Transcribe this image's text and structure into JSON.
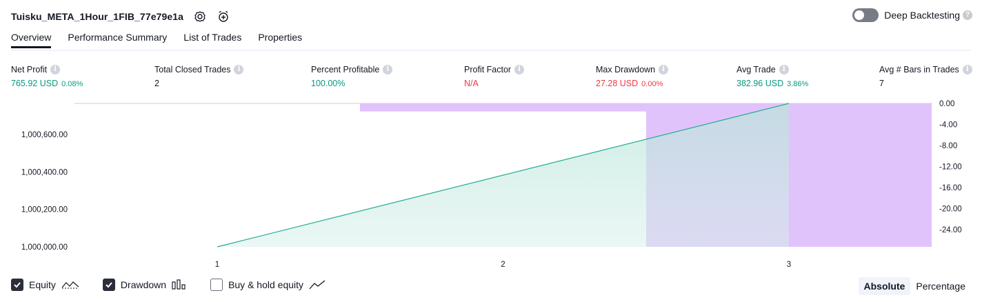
{
  "header": {
    "title": "Tuisku_META_1Hour_1FIB_77e79e1a"
  },
  "deep_backtesting": {
    "label": "Deep Backtesting",
    "help": "?"
  },
  "tabs": [
    {
      "label": "Overview"
    },
    {
      "label": "Performance Summary"
    },
    {
      "label": "List of Trades"
    },
    {
      "label": "Properties"
    }
  ],
  "metrics": {
    "info_glyph": "i",
    "net_profit": {
      "label": "Net Profit",
      "value": "765.92 USD",
      "pct": "0.08%"
    },
    "total_closed_trades": {
      "label": "Total Closed Trades",
      "value": "2"
    },
    "percent_profitable": {
      "label": "Percent Profitable",
      "value": "100.00%"
    },
    "profit_factor": {
      "label": "Profit Factor",
      "value": "N/A"
    },
    "max_drawdown": {
      "label": "Max Drawdown",
      "value": "27.28 USD",
      "pct": "0.00%"
    },
    "avg_trade": {
      "label": "Avg Trade",
      "value": "382.96 USD",
      "pct": "3.86%"
    },
    "avg_bars": {
      "label": "Avg # Bars in Trades",
      "value": "7"
    }
  },
  "legend": {
    "equity": "Equity",
    "drawdown": "Drawdown",
    "buy_hold": "Buy & hold equity"
  },
  "modes": {
    "absolute": "Absolute",
    "percentage": "Percentage"
  },
  "colors": {
    "positive": "#089981",
    "negative": "#f23645",
    "equity_line": "#22ab94",
    "drawdown_fill": "#e1c3fb"
  },
  "chart_data": {
    "type": "area",
    "x": [
      1,
      2,
      3
    ],
    "x_ticks": [
      "1",
      "2",
      "3"
    ],
    "equity": {
      "name": "Equity",
      "x": [
        1,
        3
      ],
      "values": [
        1000000.0,
        1000765.92
      ]
    },
    "drawdown": {
      "name": "Drawdown",
      "segments": [
        {
          "x_start": 1.5,
          "x_end": 2.5,
          "value": -1.0
        },
        {
          "x_start": 2.5,
          "x_end": 3.5,
          "value": -27.28
        }
      ]
    },
    "left_axis": {
      "ticks": [
        "1,000,000.00",
        "1,000,200.00",
        "1,000,400.00",
        "1,000,600.00"
      ],
      "ylim": [
        1000000,
        1000765.92
      ]
    },
    "right_axis": {
      "ticks": [
        "0.00",
        "-4.00",
        "-8.00",
        "-12.00",
        "-16.00",
        "-20.00",
        "-24.00"
      ],
      "ylim": [
        -27.28,
        0
      ]
    }
  }
}
